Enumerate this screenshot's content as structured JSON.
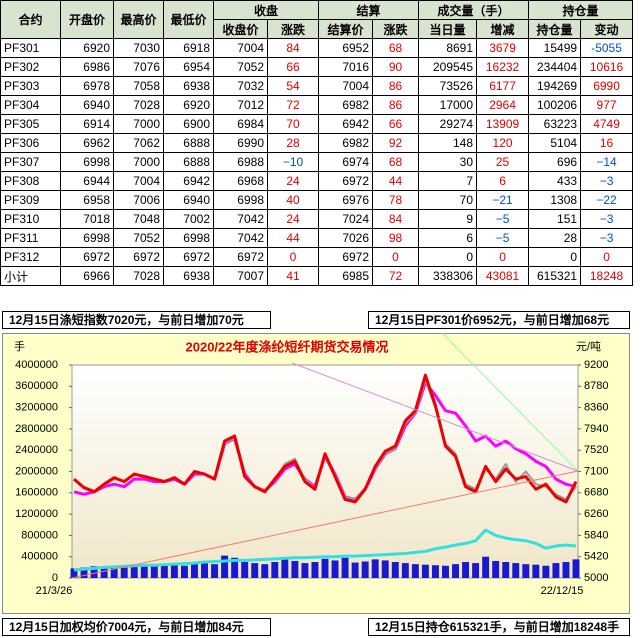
{
  "table": {
    "header": [
      "合约",
      "开盘价",
      "最高价",
      "最低价"
    ],
    "groups": [
      "收盘",
      "结算",
      "成交量（手）",
      "持仓量"
    ],
    "subheaders": [
      "收盘价",
      "涨跌",
      "结算价",
      "涨跌",
      "当日量",
      "增减",
      "持仓量",
      "变动"
    ],
    "rows": [
      [
        "PF301",
        "6920",
        "7030",
        "6918",
        "7004",
        "84",
        "6952",
        "68",
        "8691",
        "3679",
        "15499",
        "-5055"
      ],
      [
        "PF302",
        "6986",
        "7076",
        "6954",
        "7052",
        "66",
        "7016",
        "90",
        "209545",
        "16232",
        "234404",
        "10616"
      ],
      [
        "PF303",
        "6978",
        "7058",
        "6938",
        "7032",
        "54",
        "7004",
        "86",
        "73526",
        "6177",
        "194269",
        "6990"
      ],
      [
        "PF304",
        "6940",
        "7028",
        "6920",
        "7012",
        "72",
        "6982",
        "86",
        "17000",
        "2964",
        "100206",
        "977"
      ],
      [
        "PF305",
        "6914",
        "7000",
        "6900",
        "6984",
        "70",
        "6942",
        "66",
        "29274",
        "13909",
        "63223",
        "4749"
      ],
      [
        "PF306",
        "6962",
        "7062",
        "6888",
        "6990",
        "28",
        "6982",
        "92",
        "148",
        "120",
        "5104",
        "16"
      ],
      [
        "PF307",
        "6998",
        "7000",
        "6888",
        "6988",
        "−10",
        "6974",
        "68",
        "30",
        "25",
        "696",
        "−14"
      ],
      [
        "PF308",
        "6944",
        "7004",
        "6942",
        "6968",
        "24",
        "6972",
        "44",
        "7",
        "6",
        "433",
        "−3"
      ],
      [
        "PF309",
        "6958",
        "7006",
        "6940",
        "6998",
        "40",
        "6976",
        "78",
        "70",
        "−21",
        "1308",
        "−22"
      ],
      [
        "PF310",
        "7018",
        "7048",
        "7002",
        "7042",
        "24",
        "7024",
        "84",
        "9",
        "−5",
        "151",
        "−3"
      ],
      [
        "PF311",
        "6998",
        "7052",
        "6998",
        "7042",
        "44",
        "7026",
        "98",
        "6",
        "−5",
        "28",
        "−3"
      ],
      [
        "PF312",
        "6972",
        "6972",
        "6972",
        "6972",
        "0",
        "6972",
        "0",
        "0",
        "0",
        "0",
        "0"
      ],
      [
        "小计",
        "6966",
        "7028",
        "6938",
        "7007",
        "41",
        "6985",
        "72",
        "338306",
        "43081",
        "615321",
        "18248"
      ]
    ]
  },
  "notes": [
    "12月15日涤短指数7020元，与前日增加70元",
    "12月15日PF301价6952元，与前日增加68元",
    "12月15日加权均价7004元，与前日增加84元",
    "12月15日持仓615321手，与前日增加18248手"
  ],
  "chart_data": {
    "type": "line",
    "title": "2020/22年度涤纶短纤期货交易情况",
    "y_label": "手",
    "y2_label": "元/吨",
    "x_labels": [
      "21/3/26",
      "22/12/15"
    ],
    "ylim": [
      0,
      4000000
    ],
    "yticks": [
      0,
      400000,
      800000,
      1200000,
      1600000,
      2000000,
      2400000,
      2800000,
      3200000,
      3600000,
      4000000
    ],
    "y2lim": [
      5000,
      9200
    ],
    "y2ticks": [
      5000,
      5420,
      5840,
      6260,
      6680,
      7100,
      7520,
      7940,
      8360,
      8780,
      9200
    ],
    "series": [
      {
        "kind": "bar",
        "axis": "y",
        "color": "#1a1acc",
        "values": [
          180000,
          200000,
          220000,
          190000,
          230000,
          210000,
          240000,
          260000,
          220000,
          250000,
          270000,
          230000,
          280000,
          300000,
          260000,
          420000,
          380000,
          300000,
          280000,
          260000,
          300000,
          350000,
          320000,
          280000,
          300000,
          360000,
          330000,
          380000,
          290000,
          310000,
          350000,
          330000,
          300000,
          280000,
          260000,
          250000,
          240000,
          230000,
          260000,
          300000,
          280000,
          400000,
          320000,
          300000,
          280000,
          260000,
          250000,
          230000,
          280000,
          300000,
          350000
        ]
      },
      {
        "kind": "line",
        "axis": "y",
        "color": "#33e0e0",
        "values": [
          150000,
          170000,
          180000,
          200000,
          210000,
          220000,
          230000,
          240000,
          240000,
          250000,
          260000,
          270000,
          280000,
          300000,
          310000,
          320000,
          330000,
          330000,
          340000,
          350000,
          360000,
          370000,
          380000,
          380000,
          390000,
          400000,
          400000,
          410000,
          410000,
          420000,
          430000,
          440000,
          450000,
          460000,
          480000,
          500000,
          550000,
          580000,
          620000,
          650000,
          700000,
          900000,
          800000,
          750000,
          720000,
          700000,
          650000,
          560000,
          600000,
          620000,
          600000
        ]
      },
      {
        "kind": "line",
        "axis": "y2",
        "color": "#ff00ff",
        "values": [
          6700,
          6650,
          6700,
          6800,
          6850,
          6800,
          6950,
          6950,
          6900,
          6900,
          6950,
          6850,
          7050,
          7050,
          6950,
          7650,
          7750,
          7050,
          6800,
          6720,
          6900,
          7150,
          7250,
          6950,
          6800,
          7400,
          7050,
          6600,
          6550,
          6750,
          7150,
          7450,
          7550,
          8000,
          8250,
          8850,
          8600,
          8300,
          8250,
          8000,
          7700,
          7800,
          7600,
          7700,
          7550,
          7450,
          7300,
          7200,
          6950,
          6850,
          6800
        ]
      },
      {
        "kind": "line",
        "axis": "y2",
        "color": "#999999",
        "values": [
          6950,
          6800,
          6720,
          6830,
          6950,
          6920,
          7030,
          7020,
          6960,
          6920,
          6970,
          6870,
          7080,
          7060,
          6970,
          7650,
          7750,
          7020,
          6820,
          6720,
          6930,
          7250,
          7350,
          6950,
          6780,
          7400,
          7050,
          6600,
          6560,
          6780,
          7150,
          7450,
          7550,
          8050,
          8250,
          8900,
          8350,
          7650,
          7450,
          6850,
          6750,
          7150,
          6950,
          7250,
          6900,
          7100,
          6850,
          6800,
          6650,
          6550,
          6800
        ]
      },
      {
        "kind": "line",
        "axis": "y2",
        "color": "#ee0000",
        "values": [
          6950,
          6780,
          6700,
          6850,
          6980,
          6900,
          7050,
          7000,
          6950,
          6900,
          6980,
          6850,
          7100,
          7050,
          6950,
          7700,
          7800,
          7000,
          6800,
          6700,
          6950,
          7200,
          7300,
          6900,
          6750,
          7450,
          7000,
          6550,
          6500,
          6750,
          7200,
          7500,
          7600,
          8100,
          8300,
          9000,
          8400,
          7600,
          7400,
          6800,
          6700,
          7200,
          6900,
          7150,
          6950,
          7000,
          6750,
          6850,
          6600,
          6500,
          6900
        ]
      }
    ]
  }
}
